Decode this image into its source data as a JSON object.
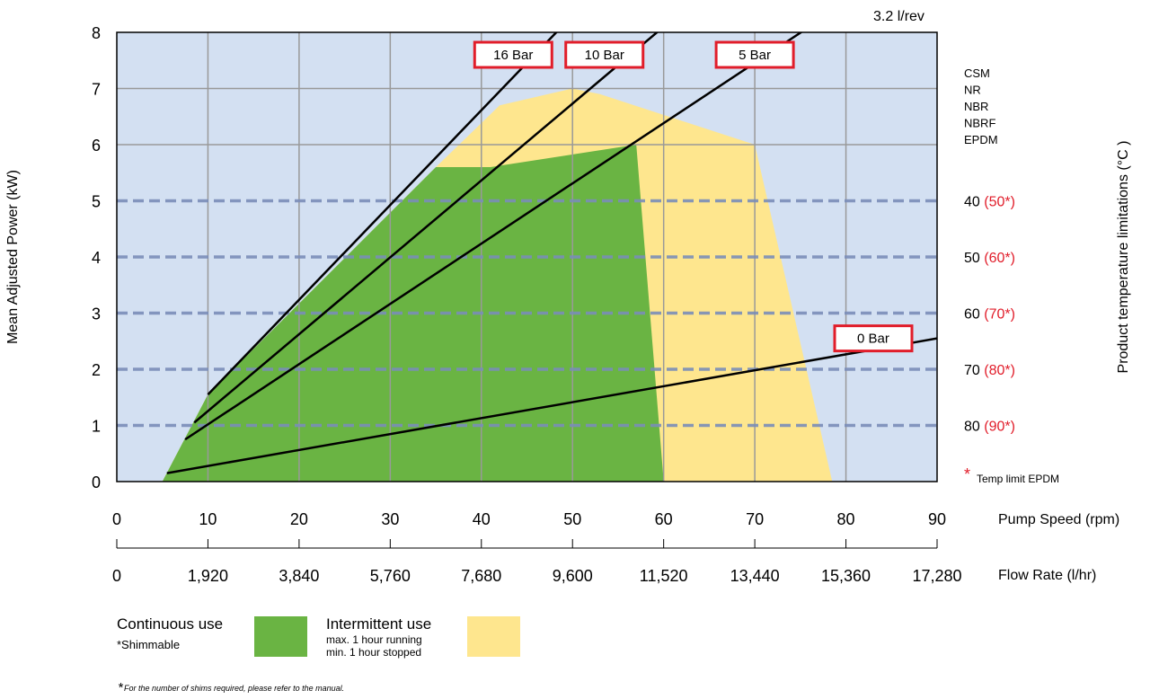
{
  "colors": {
    "plot_bg": "#d3e0f2",
    "continuous": "#6ab443",
    "intermittent": "#fee68e",
    "grid": "#999999",
    "dashed": "#7a8db8",
    "label_border": "#e11d2a",
    "red_text": "#e11d2a"
  },
  "chart_data": {
    "type": "area",
    "xlabel": "Pump Speed (rpm)",
    "ylabel": "Mean Adjusted Power (kW)",
    "y2label": "Product temperature limitations (°C )",
    "xlim": [
      0,
      90
    ],
    "ylim": [
      0,
      8
    ],
    "x_ticks": [
      "0",
      "10",
      "20",
      "30",
      "40",
      "50",
      "60",
      "70",
      "80",
      "90"
    ],
    "y_ticks": [
      "0",
      "1",
      "2",
      "3",
      "4",
      "5",
      "6",
      "7",
      "8"
    ],
    "grid": true,
    "flow_rate_axis": {
      "label": "Flow Rate (l/hr)",
      "ticks": [
        "0",
        "1,920",
        "3,840",
        "5,760",
        "7,680",
        "9,600",
        "11,520",
        "13,440",
        "15,360",
        "17,280"
      ]
    },
    "displacement_label": "3.2 l/rev",
    "areas": [
      {
        "name": "Intermittent use",
        "color": "#fee68e",
        "points": [
          [
            5,
            0
          ],
          [
            10,
            1.55
          ],
          [
            35,
            5.6
          ],
          [
            42,
            6.7
          ],
          [
            50,
            7.0
          ],
          [
            53,
            6.9
          ],
          [
            70,
            6.0
          ],
          [
            78.5,
            0
          ]
        ]
      },
      {
        "name": "Continuous use",
        "color": "#6ab443",
        "points": [
          [
            5,
            0
          ],
          [
            10,
            1.55
          ],
          [
            35,
            5.6
          ],
          [
            41,
            5.6
          ],
          [
            57,
            6.0
          ],
          [
            60,
            0
          ]
        ]
      }
    ],
    "series": [
      {
        "name": "16 Bar",
        "points": [
          [
            10,
            1.55
          ],
          [
            50,
            8.3
          ]
        ],
        "label_at": [
          43.5,
          7.6
        ]
      },
      {
        "name": "10 Bar",
        "points": [
          [
            8.5,
            1.05
          ],
          [
            60,
            8.1
          ]
        ],
        "label_at": [
          53.5,
          7.6
        ]
      },
      {
        "name": "5 Bar",
        "points": [
          [
            7.5,
            0.75
          ],
          [
            76,
            8.1
          ]
        ],
        "label_at": [
          70,
          7.6
        ]
      },
      {
        "name": "0 Bar",
        "points": [
          [
            5.5,
            0.15
          ],
          [
            90,
            2.55
          ]
        ],
        "label_at": [
          83,
          2.55
        ]
      }
    ],
    "temperature_limits": [
      {
        "y": 5,
        "value": "40",
        "epdm": "(50*)"
      },
      {
        "y": 4,
        "value": "50",
        "epdm": "(60*)"
      },
      {
        "y": 3,
        "value": "60",
        "epdm": "(70*)"
      },
      {
        "y": 2,
        "value": "70",
        "epdm": "(80*)"
      },
      {
        "y": 1,
        "value": "80",
        "epdm": "(90*)"
      }
    ],
    "materials": [
      {
        "name": "CSM",
        "red": false
      },
      {
        "name": "NR",
        "red": false
      },
      {
        "name": "NBR",
        "red": false
      },
      {
        "name": "NBRF",
        "red": false
      },
      {
        "name": "EPDM",
        "red": true
      }
    ],
    "temp_limit_note": {
      "star": "*",
      "text": "Temp limit EPDM"
    }
  },
  "legend": {
    "continuous": {
      "label": "Continuous use",
      "sub": "*Shimmable"
    },
    "intermittent": {
      "label": "Intermittent use",
      "sub1": "max. 1 hour running",
      "sub2": "min. 1 hour stopped"
    }
  },
  "footnote": {
    "star": "*",
    "text": "For the number of shims required, please refer to the manual."
  }
}
